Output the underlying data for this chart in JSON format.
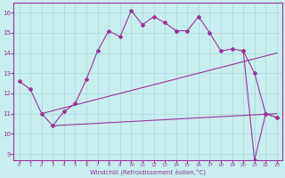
{
  "xlabel": "Windchill (Refroidissement éolien,°C)",
  "bg_color": "#c8eef0",
  "line_color": "#993399",
  "xlim": [
    -0.5,
    23.5
  ],
  "ylim": [
    8.7,
    16.5
  ],
  "xticks": [
    0,
    1,
    2,
    3,
    4,
    5,
    6,
    7,
    8,
    9,
    10,
    11,
    12,
    13,
    14,
    15,
    16,
    17,
    18,
    19,
    20,
    21,
    22,
    23
  ],
  "yticks": [
    9,
    10,
    11,
    12,
    13,
    14,
    15,
    16
  ],
  "grid_color": "#a8d8da",
  "line1_x": [
    0,
    1,
    2,
    3,
    4,
    5,
    6,
    7,
    8,
    9,
    10,
    11,
    12,
    13,
    14,
    15,
    16,
    17,
    18,
    19,
    20,
    21,
    22,
    23
  ],
  "line1_y": [
    12.6,
    12.2,
    11.0,
    10.4,
    11.1,
    11.5,
    12.7,
    14.1,
    15.1,
    14.8,
    16.1,
    15.4,
    15.8,
    15.5,
    15.1,
    15.1,
    15.8,
    15.0,
    14.1,
    14.2,
    14.1,
    13.0,
    11.0,
    10.8
  ],
  "line2_x": [
    2,
    23
  ],
  "line2_y": [
    11.0,
    14.0
  ],
  "line3_x": [
    3,
    23
  ],
  "line3_y": [
    10.4,
    11.0
  ],
  "line4_x": [
    20,
    21,
    22,
    23
  ],
  "line4_y": [
    14.1,
    8.7,
    11.0,
    10.8
  ]
}
